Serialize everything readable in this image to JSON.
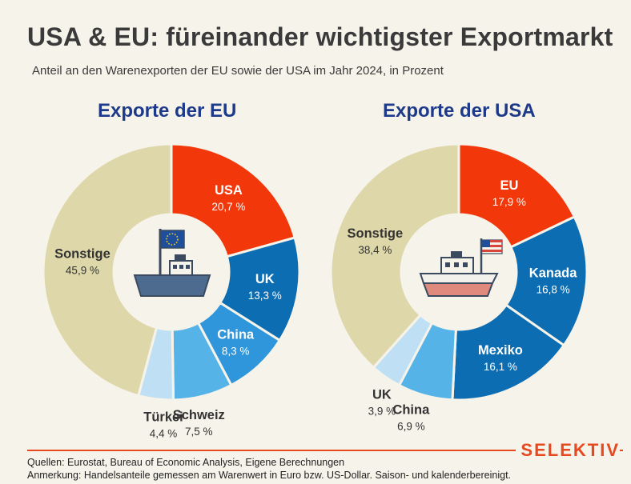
{
  "header": {
    "title": "USA & EU: füreinander wichtigster Exportmarkt",
    "subtitle": "Anteil an den Warenexporten der EU sowie der USA im Jahr 2024, in Prozent"
  },
  "chart_data": [
    {
      "type": "pie",
      "donut": true,
      "title": "Exporte der EU",
      "center_icon": "ship-with-eu-flag-icon",
      "categories": [
        "USA",
        "UK",
        "China",
        "Türkei",
        "Schweiz",
        "Sonstige"
      ],
      "series": [
        {
          "name": "Anteil an den Warenexporten der EU",
          "values": [
            20.7,
            13.3,
            8.3,
            4.4,
            7.5,
            45.9
          ]
        }
      ],
      "value_labels": [
        "20,7 %",
        "13,3 %",
        "8,3 %",
        "4,4 %",
        "7,5 %",
        "45,9 %"
      ],
      "slice_order": [
        "USA",
        "UK",
        "China",
        "Schweiz",
        "Türkei",
        "Sonstige"
      ],
      "colors": {
        "USA": "#f2380a",
        "UK": "#0d6db3",
        "China": "#2f96dc",
        "Schweiz": "#55b3e8",
        "Türkei": "#bfe0f4",
        "Sonstige": "#ded7a9"
      }
    },
    {
      "type": "pie",
      "donut": true,
      "title": "Exporte der USA",
      "center_icon": "ship-with-us-flag-icon",
      "categories": [
        "EU",
        "Kanada",
        "Mexiko",
        "UK",
        "China",
        "Sonstige"
      ],
      "series": [
        {
          "name": "Anteil an den Warenexporten der USA",
          "values": [
            17.9,
            16.8,
            16.1,
            3.9,
            6.9,
            38.4
          ]
        }
      ],
      "value_labels": [
        "17,9 %",
        "16,8 %",
        "16,1 %",
        "3,9 %",
        "6,9 %",
        "38,4 %"
      ],
      "slice_order": [
        "EU",
        "Kanada",
        "Mexiko",
        "China",
        "UK",
        "Sonstige"
      ],
      "colors": {
        "EU": "#f2380a",
        "Kanada": "#0d6db3",
        "Mexiko": "#0d6db3",
        "China": "#55b3e8",
        "UK": "#bfe0f4",
        "Sonstige": "#ded7a9"
      }
    }
  ],
  "footer": {
    "brand": "SELEKTIV",
    "sources": "Quellen: Eurostat, Bureau of Economic Analysis, Eigene Berechnungen",
    "note": "Anmerkung: Handelsanteile gemessen am Warenwert in Euro bzw. US-Dollar. Saison- und kalenderbereinigt."
  }
}
